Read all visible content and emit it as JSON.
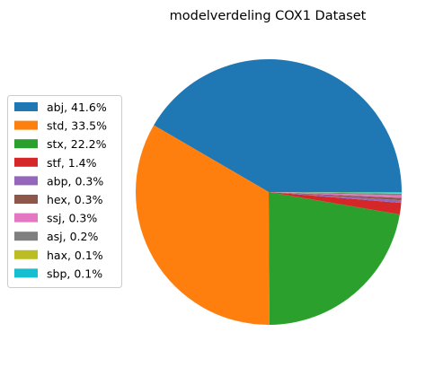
{
  "chart_data": {
    "type": "pie",
    "title": "modelverdeling COX1 Dataset",
    "start_angle_deg": 0,
    "direction": "counterclockwise",
    "legend_position": "left",
    "slices": [
      {
        "label": "abj, 41.6%",
        "value": 41.6,
        "color": "#1f77b4"
      },
      {
        "label": "std, 33.5%",
        "value": 33.5,
        "color": "#ff7f0e"
      },
      {
        "label": "stx, 22.2%",
        "value": 22.2,
        "color": "#2ca02c"
      },
      {
        "label": "stf, 1.4%",
        "value": 1.4,
        "color": "#d62728"
      },
      {
        "label": "abp, 0.3%",
        "value": 0.3,
        "color": "#9467bd"
      },
      {
        "label": "hex, 0.3%",
        "value": 0.3,
        "color": "#8c564b"
      },
      {
        "label": "ssj, 0.3%",
        "value": 0.3,
        "color": "#e377c2"
      },
      {
        "label": "asj, 0.2%",
        "value": 0.2,
        "color": "#7f7f7f"
      },
      {
        "label": "hax, 0.1%",
        "value": 0.1,
        "color": "#bcbd22"
      },
      {
        "label": "sbp, 0.1%",
        "value": 0.1,
        "color": "#17becf"
      }
    ]
  }
}
